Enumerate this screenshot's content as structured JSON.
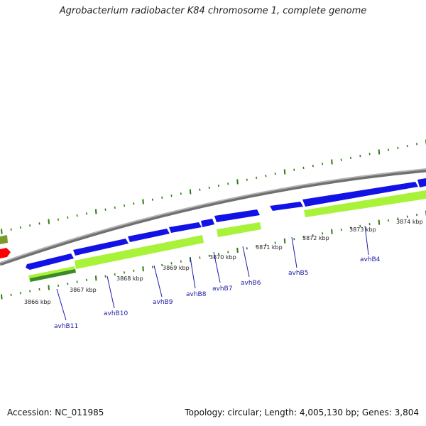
{
  "title": "Agrobacterium radiobacter K84 chromosome 1, complete genome",
  "footer": {
    "accession": "Accession: NC_011985",
    "stats": "Topology: circular; Length: 4,005,130 bp; Genes: 3,804"
  },
  "colors": {
    "backbone": "#8c8c8c",
    "forward_gene": "#1212e6",
    "cds_feature": "#a8f23a",
    "dark_feature": "#3a8a2a",
    "olive_feature": "#7a9a2a",
    "red_feature": "#ff0000",
    "tick": "#2e7d12",
    "gene_label": "#1a1aa6"
  },
  "kbp_labels": [
    "3866 kbp",
    "3867 kbp",
    "3868 kbp",
    "3869 kbp",
    "3870 kbp",
    "3871 kbp",
    "3872 kbp",
    "3873 kbp",
    "3874 kbp"
  ],
  "genes": [
    "avhB11",
    "avhB10",
    "avhB9",
    "avhB8",
    "avhB7",
    "avhB6",
    "avhB5",
    "avhB4"
  ]
}
